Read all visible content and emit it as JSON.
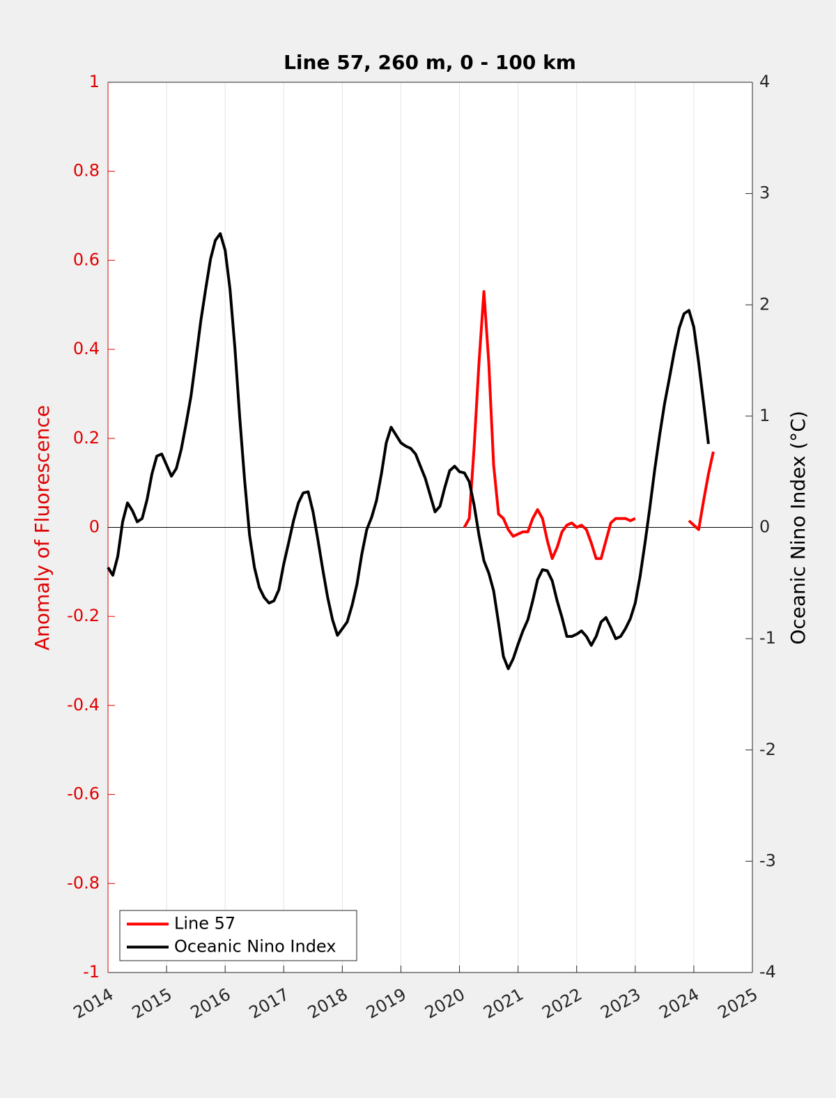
{
  "chart_data": {
    "type": "line",
    "title": "Line 57, 260 m, 0 - 100 km",
    "y_label": "Anomaly of Fluorescence",
    "y2_label": "Oceanic Nino Index (°C)",
    "xlim": [
      2014,
      2025
    ],
    "xticks": [
      2014,
      2015,
      2016,
      2017,
      2018,
      2019,
      2020,
      2021,
      2022,
      2023,
      2024,
      2025
    ],
    "ylim": [
      -1,
      1
    ],
    "yticks": [
      -1,
      -0.8,
      -0.6,
      -0.4,
      -0.2,
      0,
      0.2,
      0.4,
      0.6,
      0.8,
      1
    ],
    "y2lim": [
      -4,
      4
    ],
    "y2ticks": [
      -4,
      -3,
      -2,
      -1,
      0,
      1,
      2,
      3,
      4
    ],
    "grid": "x",
    "hline": 0,
    "legend": "lower left",
    "y_color": "#e00000",
    "series": [
      {
        "name": "Line 57",
        "color": "#ff0000",
        "x": [
          2020.083,
          2020.167,
          2020.25,
          2020.333,
          2020.417,
          2020.5,
          2020.583,
          2020.667,
          2020.75,
          2020.833,
          2020.917,
          2021.0,
          2021.083,
          2021.167,
          2021.25,
          2021.333,
          2021.417,
          2021.5,
          2021.583,
          2021.667,
          2021.75,
          2021.833,
          2021.917,
          2022.0,
          2022.083,
          2022.167,
          2022.25,
          2022.333,
          2022.417,
          2022.5,
          2022.583,
          2022.667,
          2022.75,
          2022.833,
          2022.917,
          2023.0,
          2023.5,
          2023.917,
          2024.0,
          2024.083,
          2024.167,
          2024.25,
          2024.333
        ],
        "values": [
          0,
          0.02,
          0.18,
          0.37,
          0.53,
          0.37,
          0.14,
          0.03,
          0.02,
          -0.005,
          -0.02,
          -0.015,
          -0.01,
          -0.01,
          0.02,
          0.04,
          0.02,
          -0.03,
          -0.07,
          -0.045,
          -0.01,
          0.005,
          0.01,
          0,
          0.005,
          -0.005,
          -0.035,
          -0.07,
          -0.07,
          -0.03,
          0.01,
          0.02,
          0.02,
          0.02,
          0.015,
          0.02,
          null,
          0.015,
          0.005,
          -0.005,
          0.06,
          0.12,
          0.17
        ]
      },
      {
        "name": "Oceanic Nino Index",
        "color": "#000000",
        "axis": "y2",
        "x": [
          2014.0,
          2014.083,
          2014.167,
          2014.25,
          2014.333,
          2014.417,
          2014.5,
          2014.583,
          2014.667,
          2014.75,
          2014.833,
          2014.917,
          2015.0,
          2015.083,
          2015.167,
          2015.25,
          2015.333,
          2015.417,
          2015.5,
          2015.583,
          2015.667,
          2015.75,
          2015.833,
          2015.917,
          2016.0,
          2016.083,
          2016.167,
          2016.25,
          2016.333,
          2016.417,
          2016.5,
          2016.583,
          2016.667,
          2016.75,
          2016.833,
          2016.917,
          2017.0,
          2017.083,
          2017.167,
          2017.25,
          2017.333,
          2017.417,
          2017.5,
          2017.583,
          2017.667,
          2017.75,
          2017.833,
          2017.917,
          2018.0,
          2018.083,
          2018.167,
          2018.25,
          2018.333,
          2018.417,
          2018.5,
          2018.583,
          2018.667,
          2018.75,
          2018.833,
          2018.917,
          2019.0,
          2019.083,
          2019.167,
          2019.25,
          2019.333,
          2019.417,
          2019.5,
          2019.583,
          2019.667,
          2019.75,
          2019.833,
          2019.917,
          2020.0,
          2020.083,
          2020.167,
          2020.25,
          2020.333,
          2020.417,
          2020.5,
          2020.583,
          2020.667,
          2020.75,
          2020.833,
          2020.917,
          2021.0,
          2021.083,
          2021.167,
          2021.25,
          2021.333,
          2021.417,
          2021.5,
          2021.583,
          2021.667,
          2021.75,
          2021.833,
          2021.917,
          2022.0,
          2022.083,
          2022.167,
          2022.25,
          2022.333,
          2022.417,
          2022.5,
          2022.583,
          2022.667,
          2022.75,
          2022.833,
          2022.917,
          2023.0,
          2023.083,
          2023.167,
          2023.25,
          2023.333,
          2023.417,
          2023.5,
          2023.583,
          2023.667,
          2023.75,
          2023.833,
          2023.917,
          2024.0,
          2024.083,
          2024.167,
          2024.25
        ],
        "values": [
          -0.36,
          -0.43,
          -0.26,
          0.05,
          0.22,
          0.15,
          0.05,
          0.08,
          0.25,
          0.48,
          0.64,
          0.66,
          0.56,
          0.46,
          0.53,
          0.7,
          0.93,
          1.18,
          1.51,
          1.85,
          2.14,
          2.41,
          2.58,
          2.64,
          2.49,
          2.14,
          1.61,
          0.98,
          0.42,
          -0.07,
          -0.36,
          -0.54,
          -0.63,
          -0.68,
          -0.66,
          -0.56,
          -0.33,
          -0.14,
          0.06,
          0.22,
          0.31,
          0.32,
          0.14,
          -0.11,
          -0.38,
          -0.63,
          -0.83,
          -0.97,
          -0.91,
          -0.85,
          -0.7,
          -0.51,
          -0.24,
          -0.02,
          0.09,
          0.24,
          0.48,
          0.76,
          0.9,
          0.83,
          0.76,
          0.73,
          0.71,
          0.66,
          0.55,
          0.44,
          0.29,
          0.14,
          0.19,
          0.36,
          0.51,
          0.55,
          0.5,
          0.49,
          0.41,
          0.2,
          -0.07,
          -0.3,
          -0.41,
          -0.57,
          -0.86,
          -1.16,
          -1.27,
          -1.18,
          -1.05,
          -0.93,
          -0.83,
          -0.66,
          -0.47,
          -0.38,
          -0.39,
          -0.48,
          -0.66,
          -0.81,
          -0.98,
          -0.98,
          -0.96,
          -0.93,
          -0.98,
          -1.06,
          -0.98,
          -0.85,
          -0.81,
          -0.9,
          -1.0,
          -0.98,
          -0.91,
          -0.82,
          -0.68,
          -0.44,
          -0.14,
          0.18,
          0.52,
          0.83,
          1.11,
          1.34,
          1.58,
          1.79,
          1.92,
          1.95,
          1.8,
          1.48,
          1.12,
          0.75
        ]
      }
    ]
  }
}
